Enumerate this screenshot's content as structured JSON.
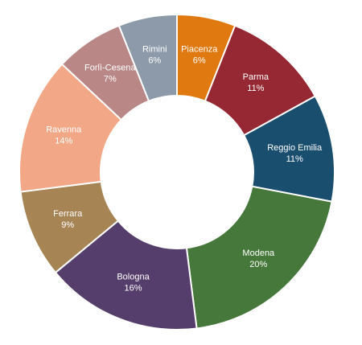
{
  "chart_data": {
    "type": "pie",
    "variant": "donut",
    "start": "top",
    "direction": "clockwise",
    "legend": "none",
    "slices": [
      {
        "label": "Piacenza",
        "pct": "6%",
        "value": 6,
        "color": "#E07A10"
      },
      {
        "label": "Parma",
        "pct": "11%",
        "value": 11,
        "color": "#952832"
      },
      {
        "label": "Reggio Emilia",
        "pct": "11%",
        "value": 11,
        "color": "#1A4E6E"
      },
      {
        "label": "Modena",
        "pct": "20%",
        "value": 20,
        "color": "#45783A"
      },
      {
        "label": "Bologna",
        "pct": "16%",
        "value": 16,
        "color": "#553E6B"
      },
      {
        "label": "Ferrara",
        "pct": "9%",
        "value": 9,
        "color": "#A68454"
      },
      {
        "label": "Ravenna",
        "pct": "14%",
        "value": 14,
        "color": "#F2A887"
      },
      {
        "label": "Forlì-Cesena",
        "pct": "7%",
        "value": 7,
        "color": "#BA8787"
      },
      {
        "label": "Rimini",
        "pct": "6%",
        "value": 6,
        "color": "#8C9AAA"
      }
    ]
  }
}
